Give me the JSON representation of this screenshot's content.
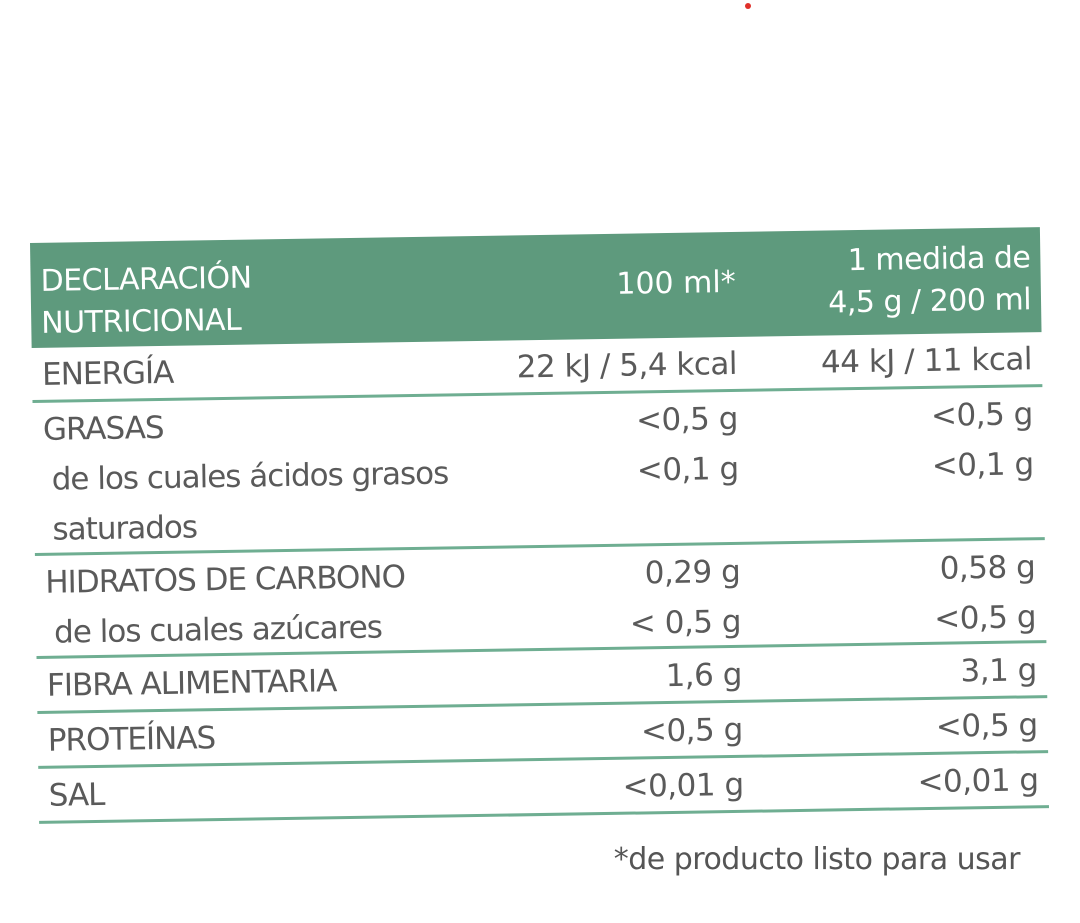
{
  "header": {
    "col1_line1": "DECLARACIÓN",
    "col1_line2": "NUTRICIONAL",
    "col2": "100 ml*",
    "col3_line1": "1 medida de",
    "col3_line2": "4,5 g / 200 ml"
  },
  "rows": {
    "energia": {
      "label": "ENERGÍA",
      "per100": "22 kJ / 5,4 kcal",
      "perServing": "44 kJ / 11 kcal"
    },
    "grasas": {
      "label": "GRASAS",
      "per100": "<0,5 g",
      "perServing": "<0,5 g"
    },
    "saturados": {
      "label_line1": "de los cuales ácidos grasos",
      "label_line2": "saturados",
      "per100": "<0,1 g",
      "perServing": "<0,1 g"
    },
    "hidratos": {
      "label": "HIDRATOS DE CARBONO",
      "per100": "0,29 g",
      "perServing": "0,58 g"
    },
    "azucares": {
      "label": "de los cuales azúcares",
      "per100": "< 0,5 g",
      "perServing": "<0,5 g"
    },
    "fibra": {
      "label": "FIBRA ALIMENTARIA",
      "per100": "1,6 g",
      "perServing": "3,1 g"
    },
    "proteinas": {
      "label": "PROTEÍNAS",
      "per100": "<0,5 g",
      "perServing": "<0,5 g"
    },
    "sal": {
      "label": "SAL",
      "per100": "<0,01 g",
      "perServing": "<0,01 g"
    }
  },
  "footnote": "*de producto listo para usar",
  "colors": {
    "header_bg": "#5e9a7d",
    "rule": "#6fae92",
    "text": "#5a5a5a",
    "dot": "#e0302a"
  }
}
